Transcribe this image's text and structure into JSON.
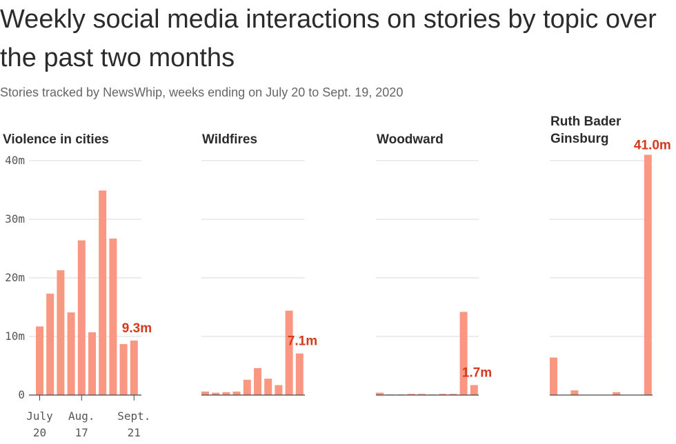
{
  "header": {
    "title": "Weekly social media interactions on stories by topic over the past two months",
    "subtitle": "Stories tracked by NewsWhip, weeks ending on July 20 to Sept. 19, 2020"
  },
  "colors": {
    "bar": "#fa9782",
    "label": "#d4391c",
    "grid": "#d8d8d8",
    "axis": "#555555"
  },
  "chart_data": [
    {
      "type": "bar",
      "title": "Violence in cities",
      "values": [
        11.7,
        17.3,
        21.3,
        14.1,
        26.4,
        10.7,
        34.9,
        26.7,
        8.7,
        9.3
      ],
      "last_label": "9.3m",
      "ylim": [
        0,
        40
      ],
      "yticks": [
        "0",
        "10m",
        "20m",
        "30m",
        "40m"
      ],
      "xticks": [
        {
          "line1": "July",
          "line2": "20"
        },
        {
          "line1": "Aug.",
          "line2": "17"
        },
        {
          "line1": "Sept.",
          "line2": "21"
        }
      ],
      "grid": true
    },
    {
      "type": "bar",
      "title": "Wildfires",
      "values": [
        0.6,
        0.4,
        0.5,
        0.6,
        2.6,
        4.6,
        2.8,
        1.7,
        14.4,
        7.1
      ],
      "last_label": "7.1m",
      "ylim": [
        0,
        40
      ],
      "grid": true
    },
    {
      "type": "bar",
      "title": "Woodward",
      "values": [
        0.4,
        0.1,
        0.1,
        0.2,
        0.2,
        0.1,
        0.2,
        0.2,
        14.2,
        1.7
      ],
      "last_label": "1.7m",
      "ylim": [
        0,
        40
      ],
      "grid": true
    },
    {
      "type": "bar",
      "title": "Ruth Bader Ginsburg",
      "values": [
        6.4,
        0.0,
        0.8,
        0.0,
        0.0,
        0.0,
        0.5,
        0.0,
        0.0,
        41.0
      ],
      "last_label": "41.0m",
      "ylim": [
        0,
        40
      ],
      "grid": true
    }
  ]
}
